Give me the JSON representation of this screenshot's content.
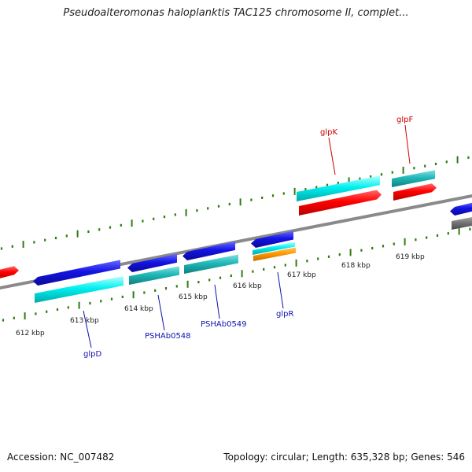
{
  "title": "Pseudoalteromonas haloplanktis TAC125 chromosome II, complet...",
  "footer": {
    "accession": "Accession: NC_007482",
    "summary": "Topology: circular; Length: 635,328 bp; Genes: 546"
  },
  "colors": {
    "forward_ruler_ticks": "#2e7d10",
    "reverse_ruler_ticks": "#2e7d10",
    "backbone": "#8a8a8a",
    "forward_label": "#cc0000",
    "reverse_label": "#1010b0",
    "gene_red": "#ff0000",
    "gene_blue": "#1414e6",
    "gene_cyan": "#00e5e5",
    "gene_teal": "#1fb8b8",
    "gene_orange": "#ff9900",
    "gene_gray": "#777777",
    "tick_label": "#222222"
  },
  "ticks": {
    "labels": [
      "612 kbp",
      "613 kbp",
      "614 kbp",
      "615 kbp",
      "616 kbp",
      "617 kbp",
      "618 kbp",
      "619 kbp"
    ]
  },
  "genes": {
    "forward": [
      {
        "name": "glpK",
        "color": "red"
      },
      {
        "name": "glpF",
        "color": "red"
      }
    ],
    "reverse": [
      {
        "name": "glpD",
        "color": "blue"
      },
      {
        "name": "PSHAb0548",
        "color": "blue"
      },
      {
        "name": "PSHAb0549",
        "color": "blue"
      },
      {
        "name": "glpR",
        "color": "blue"
      }
    ]
  }
}
